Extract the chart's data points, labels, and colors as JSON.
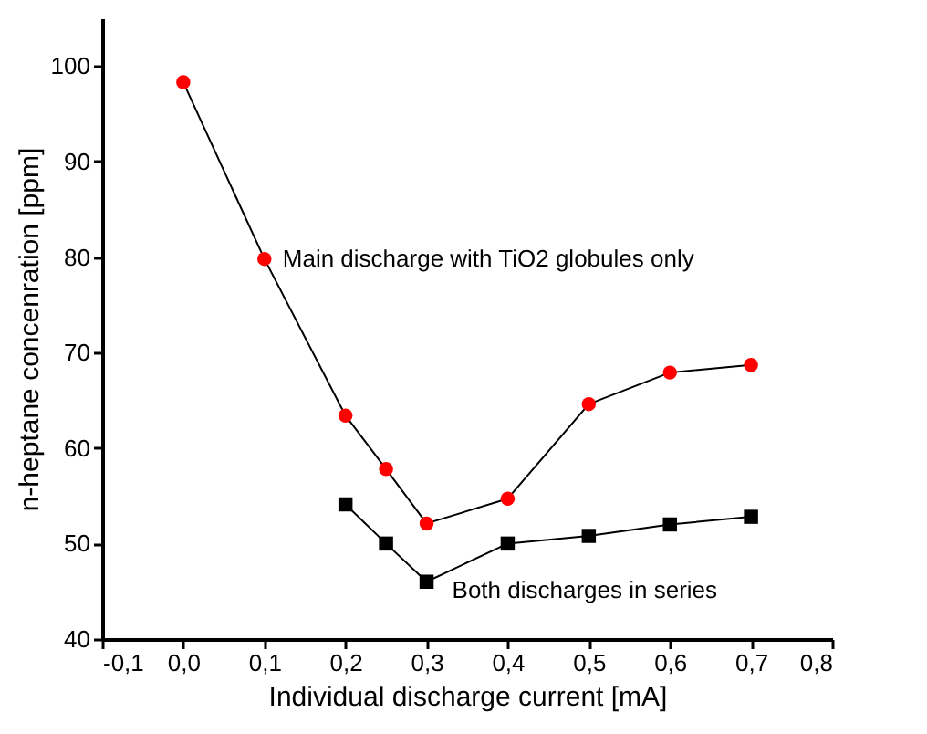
{
  "chart_data": {
    "type": "line",
    "xlabel": "Individual discharge current [mA]",
    "ylabel": "n-heptane concenration [ppm]",
    "xlim": [
      -0.1,
      0.8
    ],
    "xticks": [
      {
        "value": -0.1,
        "label": "-0,1"
      },
      {
        "value": 0,
        "label": "0,0"
      },
      {
        "value": 0.1,
        "label": "0,1"
      },
      {
        "value": 0.2,
        "label": "0,2"
      },
      {
        "value": 0.3,
        "label": "0,3"
      },
      {
        "value": 0.4,
        "label": "0,4"
      },
      {
        "value": 0.5,
        "label": "0,5"
      },
      {
        "value": 0.6,
        "label": "0,6"
      },
      {
        "value": 0.7,
        "label": "0,7"
      },
      {
        "value": 0.8,
        "label": "0,8"
      }
    ],
    "ylim": [
      40,
      105
    ],
    "yticks": [
      40,
      50,
      60,
      70,
      80,
      90,
      100
    ],
    "series": [
      {
        "name": "Main discharge with TiO2 globules only",
        "color": "#ff0000",
        "marker": "circle",
        "x": [
          0,
          0.1,
          0.2,
          0.25,
          0.3,
          0.4,
          0.5,
          0.6,
          0.7
        ],
        "values": [
          98.3,
          79.8,
          63.4,
          57.8,
          52.1,
          54.7,
          64.6,
          67.9,
          68.7
        ]
      },
      {
        "name": "Both discharges in series",
        "color": "#000000",
        "marker": "square",
        "x": [
          0.2,
          0.25,
          0.3,
          0.4,
          0.5,
          0.6,
          0.7
        ],
        "values": [
          54.1,
          50.0,
          46.0,
          50.0,
          50.8,
          52.0,
          52.8
        ]
      }
    ]
  }
}
